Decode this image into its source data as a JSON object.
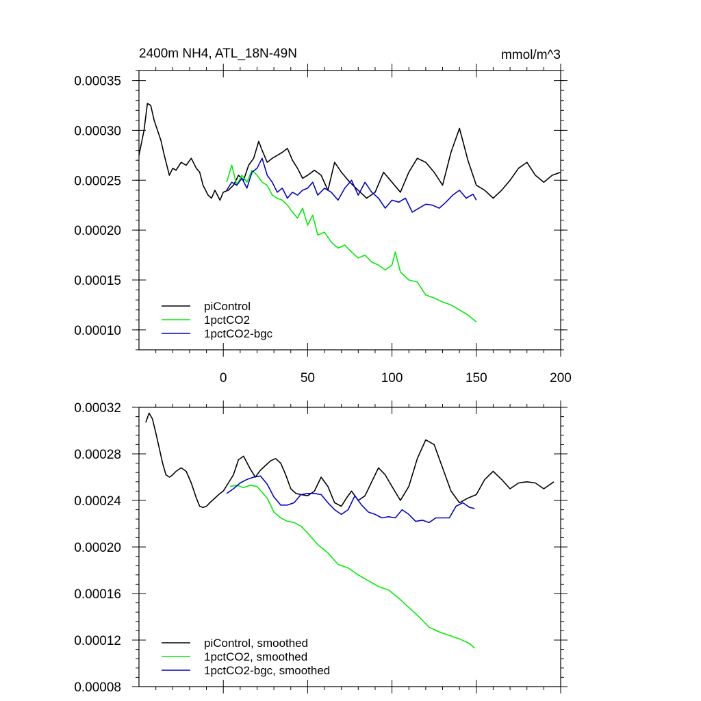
{
  "chart_data": [
    {
      "type": "line",
      "title": "2400m NH4, ATL_18N-49N",
      "units": "mmol/m^3",
      "xlim": [
        -50,
        200
      ],
      "ylim": [
        8e-05,
        0.00036
      ],
      "xticks": [
        0,
        50,
        100,
        150,
        200
      ],
      "xtick_labels": [
        "0",
        "50",
        "100",
        "150",
        "200"
      ],
      "yticks": [
        0.0001,
        0.00015,
        0.0002,
        0.00025,
        0.0003,
        0.00035
      ],
      "ytick_labels": [
        "0.00010",
        "0.00015",
        "0.00020",
        "0.00025",
        "0.00030",
        "0.00035"
      ],
      "legend_position": "bottom-left",
      "series": [
        {
          "name": "piControl",
          "color": "#000000",
          "x": [
            -50,
            -47,
            -45,
            -43,
            -41,
            -39,
            -37,
            -35,
            -32,
            -30,
            -28,
            -25,
            -22,
            -19,
            -16,
            -14,
            -12,
            -9,
            -7,
            -5,
            -2,
            0,
            3,
            6,
            9,
            12,
            15,
            18,
            21,
            23,
            26,
            29,
            32,
            35,
            38,
            41,
            44,
            47,
            50,
            54,
            58,
            62,
            66,
            70,
            75,
            80,
            85,
            90,
            95,
            100,
            105,
            110,
            115,
            120,
            125,
            130,
            135,
            140,
            145,
            150,
            155,
            160,
            165,
            170,
            175,
            180,
            185,
            190,
            195,
            200
          ],
          "values": [
            0.000275,
            0.0003,
            0.000327,
            0.000325,
            0.00031,
            0.0003,
            0.00029,
            0.000275,
            0.000255,
            0.000262,
            0.00026,
            0.000268,
            0.000265,
            0.000272,
            0.000262,
            0.000258,
            0.000245,
            0.000235,
            0.000232,
            0.00024,
            0.00023,
            0.000238,
            0.00024,
            0.000245,
            0.000255,
            0.00025,
            0.000265,
            0.000272,
            0.000289,
            0.00028,
            0.000268,
            0.000272,
            0.000275,
            0.000278,
            0.000282,
            0.00027,
            0.000262,
            0.000252,
            0.000255,
            0.00026,
            0.000255,
            0.00024,
            0.000268,
            0.000258,
            0.000248,
            0.00024,
            0.000232,
            0.000238,
            0.000258,
            0.000248,
            0.000238,
            0.000258,
            0.000272,
            0.000268,
            0.000258,
            0.000245,
            0.000278,
            0.000302,
            0.00027,
            0.000245,
            0.00024,
            0.000232,
            0.00024,
            0.00025,
            0.000262,
            0.000268,
            0.000255,
            0.000248,
            0.000255,
            0.000258
          ]
        },
        {
          "name": "1pctCO2",
          "color": "#00ee00",
          "x": [
            2,
            5,
            8,
            11,
            14,
            17,
            20,
            23,
            26,
            29,
            32,
            35,
            38,
            41,
            44,
            47,
            50,
            53,
            56,
            60,
            64,
            68,
            72,
            76,
            80,
            84,
            88,
            92,
            96,
            100,
            102,
            105,
            110,
            115,
            120,
            125,
            130,
            135,
            140,
            145,
            150
          ],
          "values": [
            0.000248,
            0.000265,
            0.000245,
            0.000255,
            0.000248,
            0.00026,
            0.000255,
            0.000248,
            0.000245,
            0.000235,
            0.000232,
            0.00023,
            0.000225,
            0.000218,
            0.000212,
            0.000222,
            0.000205,
            0.000215,
            0.000195,
            0.000198,
            0.000188,
            0.000182,
            0.000185,
            0.000178,
            0.000172,
            0.000175,
            0.000168,
            0.000165,
            0.00016,
            0.000165,
            0.000178,
            0.000158,
            0.00015,
            0.000148,
            0.000135,
            0.000132,
            0.000128,
            0.000125,
            0.00012,
            0.000115,
            0.000108
          ]
        },
        {
          "name": "1pctCO2-bgc",
          "color": "#0000cc",
          "x": [
            2,
            5,
            8,
            11,
            14,
            17,
            20,
            23,
            26,
            29,
            32,
            35,
            38,
            41,
            44,
            47,
            50,
            53,
            56,
            60,
            64,
            68,
            72,
            76,
            80,
            84,
            88,
            92,
            96,
            100,
            104,
            108,
            112,
            116,
            120,
            124,
            128,
            132,
            136,
            140,
            144,
            148,
            150
          ],
          "values": [
            0.00024,
            0.000248,
            0.000245,
            0.000252,
            0.000242,
            0.000258,
            0.000262,
            0.000272,
            0.000255,
            0.000248,
            0.000238,
            0.000242,
            0.000232,
            0.000238,
            0.000235,
            0.00024,
            0.000242,
            0.000248,
            0.000235,
            0.000242,
            0.000238,
            0.00023,
            0.000242,
            0.00025,
            0.000235,
            0.000248,
            0.000238,
            0.000232,
            0.000222,
            0.00023,
            0.000228,
            0.000232,
            0.000218,
            0.000222,
            0.000226,
            0.000225,
            0.000222,
            0.000228,
            0.000235,
            0.00024,
            0.000232,
            0.000236,
            0.00023
          ]
        }
      ],
      "legend": [
        "piControl",
        "1pctCO2",
        "1pctCO2-bgc"
      ]
    },
    {
      "type": "line",
      "title": "",
      "xlim": [
        -50,
        200
      ],
      "ylim": [
        8e-05,
        0.00032
      ],
      "xticks": [
        0,
        50,
        100,
        150,
        200
      ],
      "xtick_labels": [],
      "yticks": [
        8e-05,
        0.00012,
        0.00016,
        0.0002,
        0.00024,
        0.00028,
        0.00032
      ],
      "ytick_labels": [
        "0.00008",
        "0.00012",
        "0.00016",
        "0.00020",
        "0.00024",
        "0.00028",
        "0.00032"
      ],
      "legend_position": "bottom-left",
      "series": [
        {
          "name": "piControl, smoothed",
          "color": "#000000",
          "x": [
            -46,
            -44,
            -42,
            -40,
            -38,
            -36,
            -34,
            -32,
            -30,
            -28,
            -25,
            -22,
            -19,
            -16,
            -14,
            -12,
            -10,
            -8,
            -5,
            -2,
            0,
            3,
            6,
            9,
            12,
            16,
            19,
            22,
            25,
            28,
            31,
            34,
            37,
            40,
            43,
            46,
            50,
            54,
            58,
            62,
            66,
            70,
            73,
            76,
            80,
            84,
            88,
            92,
            96,
            100,
            105,
            110,
            115,
            120,
            125,
            130,
            135,
            140,
            145,
            150,
            155,
            160,
            165,
            170,
            175,
            180,
            185,
            190,
            196
          ],
          "values": [
            0.000307,
            0.000315,
            0.00031,
            0.000298,
            0.000285,
            0.000272,
            0.000262,
            0.00026,
            0.000262,
            0.000265,
            0.000268,
            0.000265,
            0.000255,
            0.000242,
            0.000235,
            0.000234,
            0.000235,
            0.000238,
            0.000242,
            0.000246,
            0.000248,
            0.000255,
            0.000262,
            0.000275,
            0.000278,
            0.000267,
            0.00026,
            0.000266,
            0.00027,
            0.000274,
            0.000276,
            0.000272,
            0.000262,
            0.00025,
            0.000246,
            0.000245,
            0.000244,
            0.000248,
            0.00026,
            0.000252,
            0.000238,
            0.000235,
            0.000242,
            0.000248,
            0.00024,
            0.000244,
            0.000256,
            0.000268,
            0.000262,
            0.000252,
            0.00024,
            0.000252,
            0.000276,
            0.000292,
            0.000288,
            0.000268,
            0.000248,
            0.000238,
            0.000242,
            0.000245,
            0.000258,
            0.000265,
            0.000258,
            0.00025,
            0.000255,
            0.000256,
            0.000255,
            0.00025,
            0.000256
          ]
        },
        {
          "name": "1pctCO2, smoothed",
          "color": "#00ee00",
          "x": [
            4,
            8,
            12,
            16,
            20,
            23,
            26,
            30,
            34,
            38,
            42,
            46,
            50,
            56,
            62,
            68,
            74,
            80,
            86,
            92,
            98,
            104,
            110,
            116,
            122,
            128,
            134,
            140,
            146,
            149
          ],
          "values": [
            0.000252,
            0.000253,
            0.000251,
            0.000253,
            0.000252,
            0.000247,
            0.000242,
            0.00023,
            0.000225,
            0.000222,
            0.000221,
            0.000218,
            0.000212,
            0.000202,
            0.000195,
            0.000185,
            0.000182,
            0.000176,
            0.000171,
            0.000166,
            0.000163,
            0.000156,
            0.000148,
            0.00014,
            0.000131,
            0.000127,
            0.000124,
            0.000121,
            0.000117,
            0.000113
          ]
        },
        {
          "name": "1pctCO2-bgc, smoothed",
          "color": "#0000cc",
          "x": [
            2,
            6,
            10,
            14,
            18,
            22,
            26,
            30,
            34,
            38,
            42,
            46,
            50,
            54,
            58,
            62,
            66,
            70,
            74,
            78,
            82,
            86,
            90,
            94,
            98,
            102,
            106,
            110,
            114,
            118,
            122,
            126,
            130,
            134,
            138,
            142,
            146,
            149
          ],
          "values": [
            0.000246,
            0.00025,
            0.000255,
            0.000258,
            0.00026,
            0.000261,
            0.000254,
            0.000243,
            0.000236,
            0.000236,
            0.000238,
            0.000245,
            0.000246,
            0.000246,
            0.000245,
            0.000238,
            0.000232,
            0.000228,
            0.000232,
            0.000244,
            0.000236,
            0.00023,
            0.000228,
            0.000225,
            0.000226,
            0.000225,
            0.000232,
            0.000228,
            0.000222,
            0.000223,
            0.000221,
            0.000225,
            0.000225,
            0.000225,
            0.000235,
            0.000238,
            0.000234,
            0.000233
          ]
        }
      ],
      "legend": [
        "piControl, smoothed",
        "1pctCO2, smoothed",
        "1pctCO2-bgc, smoothed"
      ]
    }
  ]
}
